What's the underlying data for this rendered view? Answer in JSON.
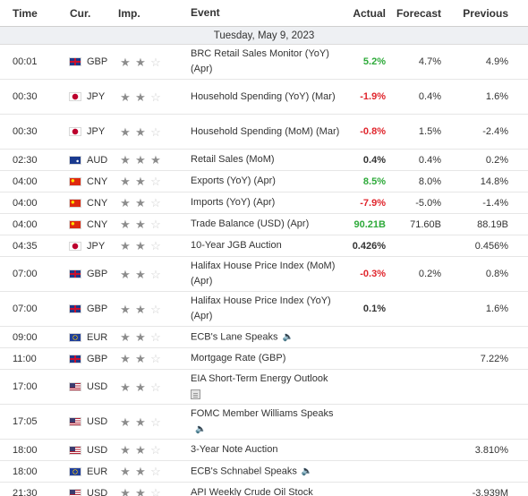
{
  "header": {
    "time": "Time",
    "currency": "Cur.",
    "importance": "Imp.",
    "event": "Event",
    "actual": "Actual",
    "forecast": "Forecast",
    "previous": "Previous"
  },
  "day_label": "Tuesday, May 9, 2023",
  "colors": {
    "positive": "#2eaa3a",
    "negative": "#e0262d",
    "star_on": "#8d8d8d",
    "star_off": "#cfcfcf",
    "day_band": "#eef0f3"
  },
  "events": [
    {
      "time": "00:01",
      "cur": "GBP",
      "imp": 2,
      "event": "BRC Retail Sales Monitor (YoY) (Apr)",
      "actual": "5.2%",
      "actual_status": "pos",
      "forecast": "4.7%",
      "previous": "4.9%"
    },
    {
      "time": "00:30",
      "cur": "JPY",
      "imp": 2,
      "event": "Household Spending (YoY) (Mar)",
      "actual": "-1.9%",
      "actual_status": "neg",
      "forecast": "0.4%",
      "previous": "1.6%"
    },
    {
      "time": "00:30",
      "cur": "JPY",
      "imp": 2,
      "event": "Household Spending (MoM) (Mar)",
      "actual": "-0.8%",
      "actual_status": "neg",
      "forecast": "1.5%",
      "previous": "-2.4%"
    },
    {
      "time": "02:30",
      "cur": "AUD",
      "imp": 3,
      "event": "Retail Sales (MoM)",
      "actual": "0.4%",
      "actual_status": "neutral",
      "forecast": "0.4%",
      "previous": "0.2%"
    },
    {
      "time": "04:00",
      "cur": "CNY",
      "imp": 2,
      "event": "Exports (YoY) (Apr)",
      "actual": "8.5%",
      "actual_status": "pos",
      "forecast": "8.0%",
      "previous": "14.8%"
    },
    {
      "time": "04:00",
      "cur": "CNY",
      "imp": 2,
      "event": "Imports (YoY) (Apr)",
      "actual": "-7.9%",
      "actual_status": "neg",
      "forecast": "-5.0%",
      "previous": "-1.4%"
    },
    {
      "time": "04:00",
      "cur": "CNY",
      "imp": 2,
      "event": "Trade Balance (USD) (Apr)",
      "actual": "90.21B",
      "actual_status": "pos",
      "forecast": "71.60B",
      "previous": "88.19B"
    },
    {
      "time": "04:35",
      "cur": "JPY",
      "imp": 2,
      "event": "10-Year JGB Auction",
      "actual": "0.426%",
      "actual_status": "neutral",
      "forecast": "",
      "previous": "0.456%"
    },
    {
      "time": "07:00",
      "cur": "GBP",
      "imp": 2,
      "event": "Halifax House Price Index (MoM) (Apr)",
      "actual": "-0.3%",
      "actual_status": "neg",
      "forecast": "0.2%",
      "previous": "0.8%"
    },
    {
      "time": "07:00",
      "cur": "GBP",
      "imp": 2,
      "event": "Halifax House Price Index (YoY) (Apr)",
      "actual": "0.1%",
      "actual_status": "neutral",
      "forecast": "",
      "previous": "1.6%"
    },
    {
      "time": "09:00",
      "cur": "EUR",
      "imp": 2,
      "event": "ECB's Lane Speaks",
      "actual": "",
      "actual_status": "neutral",
      "forecast": "",
      "previous": "",
      "icon": "speaker-icon"
    },
    {
      "time": "11:00",
      "cur": "GBP",
      "imp": 2,
      "event": "Mortgage Rate (GBP)",
      "actual": "",
      "actual_status": "neutral",
      "forecast": "",
      "previous": "7.22%"
    },
    {
      "time": "17:00",
      "cur": "USD",
      "imp": 2,
      "event": "EIA Short-Term Energy Outlook",
      "actual": "",
      "actual_status": "neutral",
      "forecast": "",
      "previous": "",
      "icon": "document-icon"
    },
    {
      "time": "17:05",
      "cur": "USD",
      "imp": 2,
      "event": "FOMC Member Williams Speaks",
      "actual": "",
      "actual_status": "neutral",
      "forecast": "",
      "previous": "",
      "icon": "speaker-icon"
    },
    {
      "time": "18:00",
      "cur": "USD",
      "imp": 2,
      "event": "3-Year Note Auction",
      "actual": "",
      "actual_status": "neutral",
      "forecast": "",
      "previous": "3.810%"
    },
    {
      "time": "18:00",
      "cur": "EUR",
      "imp": 2,
      "event": "ECB's Schnabel Speaks",
      "actual": "",
      "actual_status": "neutral",
      "forecast": "",
      "previous": "",
      "icon": "speaker-icon"
    },
    {
      "time": "21:30",
      "cur": "USD",
      "imp": 2,
      "event": "API Weekly Crude Oil Stock",
      "actual": "",
      "actual_status": "neutral",
      "forecast": "",
      "previous": "-3.939M"
    }
  ]
}
